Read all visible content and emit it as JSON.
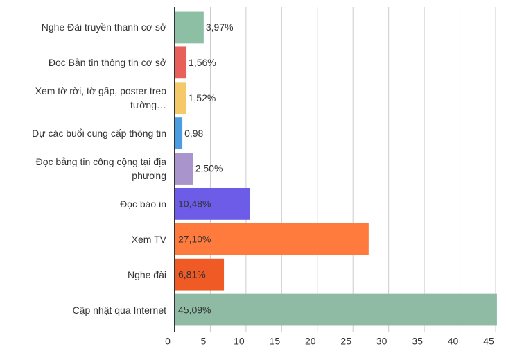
{
  "chart_data": {
    "type": "bar",
    "orientation": "horizontal",
    "categories": [
      "Nghe Đài truyền thanh cơ sở",
      "Đọc Bản tin thông tin cơ sở",
      "Xem tờ rời, tờ gấp, poster treo tường…",
      "Dự các buổi cung cấp thông tin",
      "Đọc bảng tin công cộng tại địa phương",
      "Đọc báo in",
      "Xem TV",
      "Nghe đài",
      "Cập nhật qua Internet"
    ],
    "values": [
      3.97,
      1.56,
      1.52,
      0.98,
      2.5,
      10.48,
      27.1,
      6.81,
      45.09
    ],
    "value_labels": [
      "3,97%",
      "1,56%",
      "1,52%",
      "0,98",
      "2,50%",
      "10,48%",
      "27,10%",
      "6,81%",
      "45,09%"
    ],
    "colors": [
      "#8dbfa5",
      "#e8605a",
      "#f5c96a",
      "#4a9de0",
      "#a994cc",
      "#6c5ce7",
      "#ff7a3d",
      "#f05a24",
      "#8fbba5"
    ],
    "xlim": [
      0,
      45
    ],
    "xticks": [
      0,
      5,
      10,
      15,
      20,
      25,
      30,
      35,
      40,
      45
    ],
    "grid": true
  }
}
